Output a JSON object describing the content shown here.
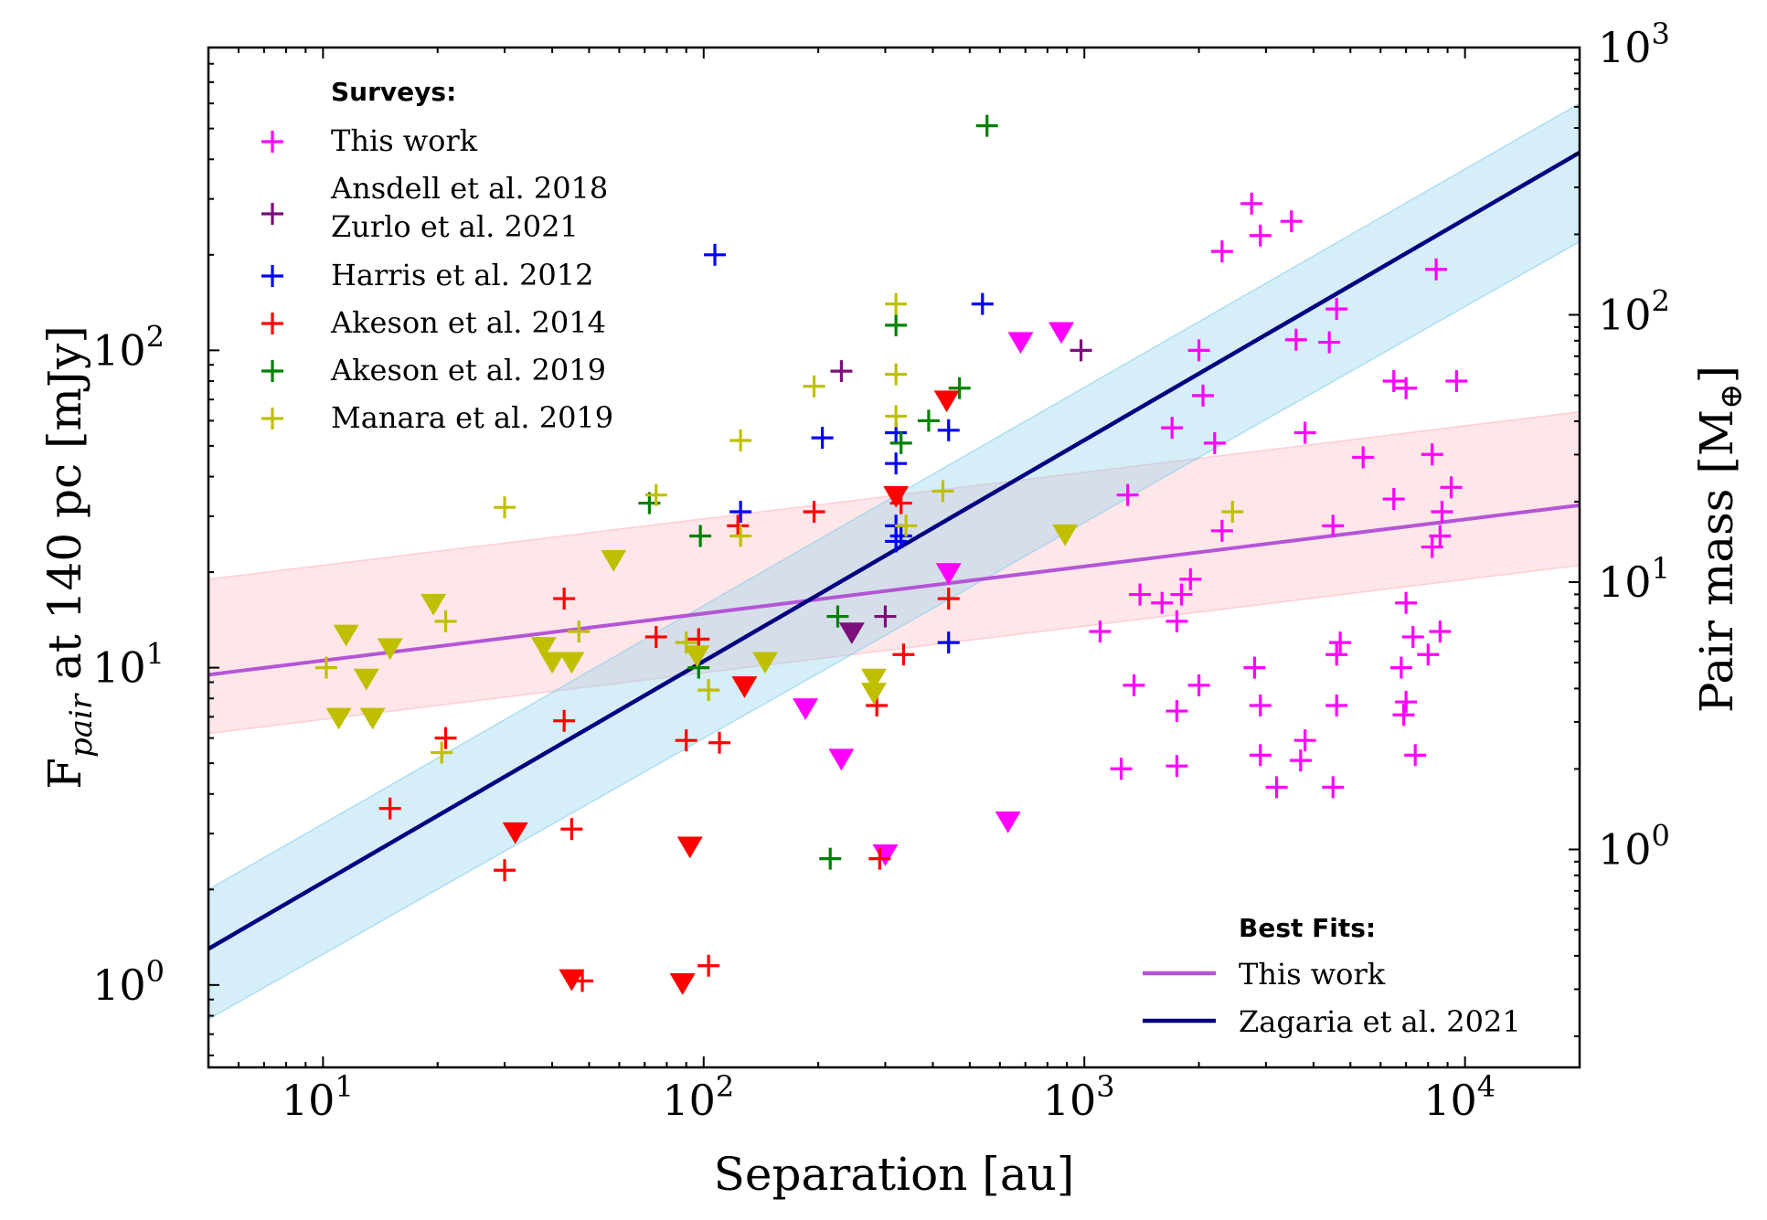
{
  "chart_data": {
    "type": "scatter",
    "xlabel": "Separation [au]",
    "ylabel": "F_pair at 140 pc [mJy]",
    "ylabel_main": "F",
    "ylabel_sub": "pair",
    "ylabel_rest": " at 140 pc [mJy]",
    "ylabel_right": "Pair mass [M⊕]",
    "ylabel_right_main": "Pair mass [M",
    "ylabel_right_sub": "⊕",
    "ylabel_right_end": "]",
    "xscale": "log",
    "yscale": "log",
    "xlim": [
      5,
      20000
    ],
    "ylim": [
      0.55,
      900
    ],
    "right_ylim": [
      0.153,
      1000
    ],
    "x_ticks": [
      {
        "value": 10,
        "base": "10",
        "exp": "1"
      },
      {
        "value": 100,
        "base": "10",
        "exp": "2"
      },
      {
        "value": 1000,
        "base": "10",
        "exp": "3"
      },
      {
        "value": 10000,
        "base": "10",
        "exp": "4"
      }
    ],
    "y_ticks": [
      {
        "value": 1,
        "base": "10",
        "exp": "0"
      },
      {
        "value": 10,
        "base": "10",
        "exp": "1"
      },
      {
        "value": 100,
        "base": "10",
        "exp": "2"
      }
    ],
    "right_y_ticks": [
      {
        "value": 1,
        "base": "10",
        "exp": "0"
      },
      {
        "value": 10,
        "base": "10",
        "exp": "1"
      },
      {
        "value": 100,
        "base": "10",
        "exp": "2"
      },
      {
        "value": 1000,
        "base": "10",
        "exp": "3"
      }
    ],
    "legend_surveys": {
      "title": "Surveys:",
      "placement": "top-left",
      "entries": [
        {
          "label": "This work",
          "color": "#ff00ff"
        },
        {
          "label": "Ansdell et al. 2018",
          "label2": "Zurlo et al. 2021",
          "color": "#7b0f7b"
        },
        {
          "label": "Harris et al. 2012",
          "color": "#0000ff"
        },
        {
          "label": "Akeson et al. 2014",
          "color": "#ff0000"
        },
        {
          "label": "Akeson et al. 2019",
          "color": "#008000"
        },
        {
          "label": "Manara et al. 2019",
          "color": "#bfbf00"
        }
      ]
    },
    "legend_fits": {
      "title": "Best Fits:",
      "placement": "bottom-right",
      "entries": [
        {
          "label": "This work",
          "color": "#b455d6"
        },
        {
          "label": "Zagaria et al. 2021",
          "color": "#000080"
        }
      ]
    },
    "fits": [
      {
        "name": "This work",
        "color": "#b455d6",
        "band_color": "#ffb6c1",
        "points": [
          [
            5,
            9.5
          ],
          [
            20000,
            32.5
          ]
        ],
        "band_lower": [
          [
            5,
            6.2
          ],
          [
            20000,
            21
          ]
        ],
        "band_upper": [
          [
            5,
            19
          ],
          [
            20000,
            64
          ]
        ]
      },
      {
        "name": "Zagaria et al. 2021",
        "color": "#000080",
        "band_color": "#87ceeb",
        "points": [
          [
            5,
            1.3
          ],
          [
            20000,
            420
          ]
        ],
        "band_lower": [
          [
            5,
            0.78
          ],
          [
            20000,
            220
          ]
        ],
        "band_upper": [
          [
            5,
            2.0
          ],
          [
            20000,
            600
          ]
        ]
      }
    ],
    "series": [
      {
        "name": "This work",
        "color": "#ff00ff",
        "detections": [
          [
            2750,
            290
          ],
          [
            2900,
            230
          ],
          [
            3500,
            255
          ],
          [
            2300,
            205
          ],
          [
            8400,
            180
          ],
          [
            4600,
            135
          ],
          [
            3600,
            108
          ],
          [
            4400,
            106
          ],
          [
            2000,
            100
          ],
          [
            2050,
            72
          ],
          [
            2200,
            51
          ],
          [
            1700,
            57
          ],
          [
            3800,
            55
          ],
          [
            6500,
            80
          ],
          [
            7000,
            76
          ],
          [
            9500,
            80
          ],
          [
            5400,
            46
          ],
          [
            8200,
            47
          ],
          [
            6500,
            34
          ],
          [
            9200,
            37
          ],
          [
            8700,
            31
          ],
          [
            1300,
            35
          ],
          [
            2300,
            27
          ],
          [
            4500,
            28
          ],
          [
            8600,
            26
          ],
          [
            8200,
            24
          ],
          [
            1900,
            19
          ],
          [
            1800,
            17
          ],
          [
            1400,
            17
          ],
          [
            1600,
            16
          ],
          [
            1750,
            14
          ],
          [
            7000,
            16
          ],
          [
            1100,
            13
          ],
          [
            4700,
            12
          ],
          [
            8600,
            13
          ],
          [
            7300,
            12.5
          ],
          [
            4600,
            11
          ],
          [
            8000,
            11
          ],
          [
            2800,
            10
          ],
          [
            6800,
            10
          ],
          [
            1350,
            8.8
          ],
          [
            2000,
            8.8
          ],
          [
            2900,
            7.6
          ],
          [
            4600,
            7.6
          ],
          [
            1750,
            7.3
          ],
          [
            7000,
            7.8
          ],
          [
            6900,
            7.1
          ],
          [
            2900,
            5.3
          ],
          [
            3800,
            5.9
          ],
          [
            1250,
            4.8
          ],
          [
            1750,
            4.9
          ],
          [
            3700,
            5.1
          ],
          [
            7400,
            5.3
          ],
          [
            3200,
            4.2
          ],
          [
            4500,
            4.2
          ]
        ],
        "upper_limits": [
          [
            680,
            107
          ],
          [
            870,
            115
          ],
          [
            440,
            20
          ],
          [
            185,
            7.5
          ],
          [
            230,
            5.2
          ],
          [
            630,
            3.3
          ],
          [
            300,
            2.6
          ]
        ]
      },
      {
        "name": "Ansdell et al. 2018 / Zurlo et al. 2021",
        "color": "#7b0f7b",
        "detections": [
          [
            230,
            86
          ],
          [
            980,
            100
          ],
          [
            300,
            14.5
          ]
        ],
        "upper_limits": [
          [
            245,
            13
          ]
        ]
      },
      {
        "name": "Harris et al. 2012",
        "color": "#0000ff",
        "detections": [
          [
            107,
            200
          ],
          [
            540,
            140
          ],
          [
            205,
            53
          ],
          [
            320,
            55
          ],
          [
            440,
            56
          ],
          [
            320,
            44
          ],
          [
            125,
            31
          ],
          [
            320,
            28
          ],
          [
            330,
            26
          ],
          [
            320,
            25
          ],
          [
            440,
            12
          ]
        ],
        "upper_limits": []
      },
      {
        "name": "Akeson et al. 2014",
        "color": "#ff0000",
        "detections": [
          [
            195,
            31
          ],
          [
            123,
            28
          ],
          [
            330,
            33
          ],
          [
            43,
            16.5
          ],
          [
            440,
            16.5
          ],
          [
            75,
            12.5
          ],
          [
            97,
            12.3
          ],
          [
            335,
            11
          ],
          [
            21,
            6
          ],
          [
            43,
            6.8
          ],
          [
            90,
            5.9
          ],
          [
            110,
            5.8
          ],
          [
            15,
            3.6
          ],
          [
            45,
            3.1
          ],
          [
            30,
            2.3
          ],
          [
            285,
            7.6
          ],
          [
            290,
            2.5
          ],
          [
            103,
            1.15
          ],
          [
            48,
            1.03
          ]
        ],
        "upper_limits": [
          [
            320,
            35
          ],
          [
            435,
            70
          ],
          [
            32,
            3.05
          ],
          [
            92,
            2.75
          ],
          [
            128,
            8.8
          ],
          [
            45,
            1.05
          ],
          [
            88,
            1.02
          ]
        ]
      },
      {
        "name": "Akeson et al. 2019",
        "color": "#008000",
        "detections": [
          [
            555,
            510
          ],
          [
            320,
            120
          ],
          [
            470,
            76
          ],
          [
            390,
            60
          ],
          [
            330,
            51
          ],
          [
            72,
            33
          ],
          [
            98,
            26
          ],
          [
            225,
            14.5
          ],
          [
            97,
            10
          ],
          [
            215,
            2.5
          ]
        ],
        "upper_limits": []
      },
      {
        "name": "Manara et al. 2019",
        "color": "#bfbf00",
        "detections": [
          [
            320,
            140
          ],
          [
            320,
            84
          ],
          [
            195,
            77
          ],
          [
            320,
            62
          ],
          [
            125,
            52
          ],
          [
            75,
            35
          ],
          [
            425,
            36
          ],
          [
            30,
            32
          ],
          [
            125,
            26
          ],
          [
            340,
            28
          ],
          [
            21,
            14
          ],
          [
            47,
            13
          ],
          [
            90,
            12
          ],
          [
            10.2,
            10
          ],
          [
            20.5,
            5.4
          ],
          [
            103,
            8.5
          ],
          [
            2450,
            31
          ]
        ],
        "upper_limits": [
          [
            58,
            22
          ],
          [
            19.5,
            16
          ],
          [
            11.5,
            12.8
          ],
          [
            15,
            11.6
          ],
          [
            38,
            11.7
          ],
          [
            40,
            10.5
          ],
          [
            45,
            10.5
          ],
          [
            13,
            9.3
          ],
          [
            11,
            7
          ],
          [
            13.5,
            7
          ],
          [
            145,
            10.5
          ],
          [
            96,
            11
          ],
          [
            280,
            9.3
          ],
          [
            280,
            8.4
          ],
          [
            890,
            26.5
          ]
        ]
      }
    ]
  }
}
